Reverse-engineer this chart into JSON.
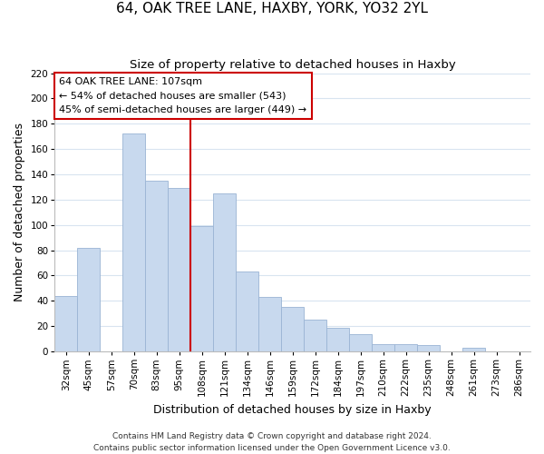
{
  "title": "64, OAK TREE LANE, HAXBY, YORK, YO32 2YL",
  "subtitle": "Size of property relative to detached houses in Haxby",
  "xlabel": "Distribution of detached houses by size in Haxby",
  "ylabel": "Number of detached properties",
  "bar_labels": [
    "32sqm",
    "45sqm",
    "57sqm",
    "70sqm",
    "83sqm",
    "95sqm",
    "108sqm",
    "121sqm",
    "134sqm",
    "146sqm",
    "159sqm",
    "172sqm",
    "184sqm",
    "197sqm",
    "210sqm",
    "222sqm",
    "235sqm",
    "248sqm",
    "261sqm",
    "273sqm",
    "286sqm"
  ],
  "bar_values": [
    44,
    82,
    0,
    172,
    135,
    129,
    99,
    125,
    63,
    43,
    35,
    25,
    19,
    14,
    6,
    6,
    5,
    0,
    3,
    0,
    0
  ],
  "bar_color": "#c8d9ee",
  "bar_edge_color": "#9ab4d4",
  "vline_position": 6,
  "vline_color": "#cc0000",
  "annotation_title": "64 OAK TREE LANE: 107sqm",
  "annotation_line1": "← 54% of detached houses are smaller (543)",
  "annotation_line2": "45% of semi-detached houses are larger (449) →",
  "annotation_box_facecolor": "#ffffff",
  "annotation_box_edgecolor": "#cc0000",
  "ylim": [
    0,
    220
  ],
  "yticks": [
    0,
    20,
    40,
    60,
    80,
    100,
    120,
    140,
    160,
    180,
    200,
    220
  ],
  "footer1": "Contains HM Land Registry data © Crown copyright and database right 2024.",
  "footer2": "Contains public sector information licensed under the Open Government Licence v3.0.",
  "grid_color": "#d8e4f0",
  "title_fontsize": 11,
  "subtitle_fontsize": 9.5,
  "axis_label_fontsize": 9,
  "tick_fontsize": 7.5,
  "annotation_fontsize": 8,
  "footer_fontsize": 6.5
}
